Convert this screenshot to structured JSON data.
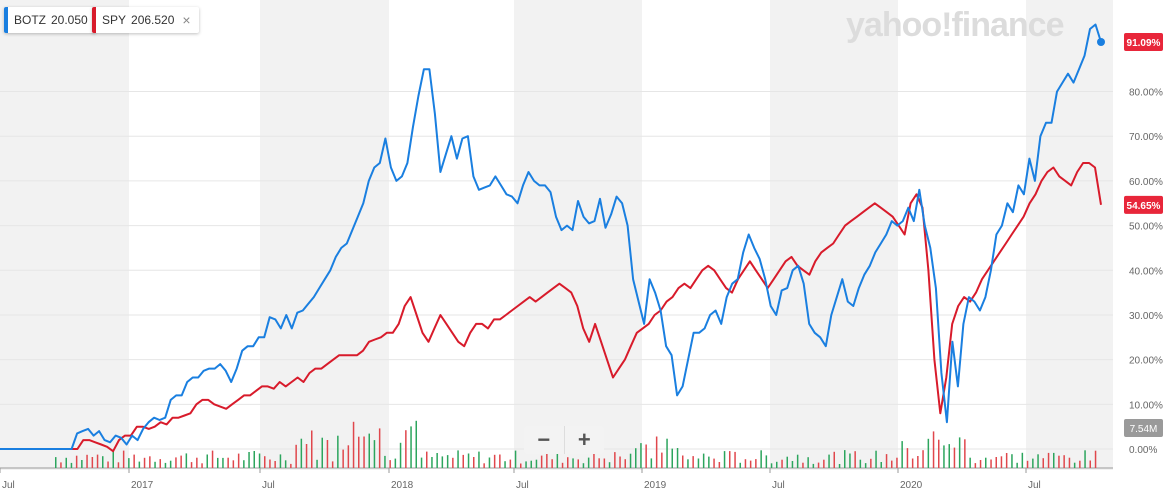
{
  "tags": [
    {
      "ticker": "BOTZ",
      "price": "20.050",
      "color": "#1a7fe0"
    },
    {
      "ticker": "SPY",
      "price": "206.520",
      "color": "#d81b2b",
      "close": "×"
    }
  ],
  "logo_text": "yahoo!finance",
  "zoom": {
    "minus": "−",
    "plus": "+"
  },
  "colors": {
    "botz": "#1a7fe0",
    "spy": "#d81b2b",
    "volume_up": "#2ca55d",
    "volume_down": "#e0474c",
    "band": "#f2f2f2"
  },
  "chart_data": {
    "type": "line",
    "x_ticks": [
      "Jul",
      "2017",
      "Jul",
      "2018",
      "Jul",
      "2019",
      "Jul",
      "2020",
      "Jul"
    ],
    "y_ticks": [
      "0.00%",
      "10.00%",
      "20.00%",
      "30.00%",
      "40.00%",
      "50.00%",
      "60.00%",
      "70.00%",
      "80.00%"
    ],
    "ylim": [
      -2,
      98
    ],
    "series": [
      {
        "name": "BOTZ",
        "last_label": "91.09%",
        "last_value": 91.09,
        "values": [
          0,
          0,
          0,
          0,
          0,
          0,
          0,
          0,
          0,
          0,
          0,
          0,
          0,
          0,
          3.5,
          4,
          4.5,
          3,
          4,
          2,
          1.5,
          3,
          2.5,
          1,
          3,
          2,
          4.5,
          6,
          7,
          6.5,
          7,
          11,
          12,
          12,
          15,
          16,
          16,
          17.5,
          18,
          18,
          19,
          17.5,
          15,
          18,
          22,
          23,
          23,
          25,
          25,
          29.5,
          29,
          27,
          30,
          27,
          30.5,
          31,
          32.5,
          34,
          36,
          38,
          40,
          43,
          45,
          46,
          49,
          52,
          55,
          60,
          63,
          64,
          69.5,
          63,
          60,
          61,
          64,
          72,
          79,
          85,
          85,
          75,
          62,
          66,
          70,
          65,
          69.5,
          70,
          61,
          58,
          58.5,
          59,
          61,
          59,
          57,
          56.5,
          55,
          59,
          62,
          60,
          59,
          59,
          57.5,
          52,
          49,
          50,
          49,
          55.5,
          52,
          50.5,
          51,
          56,
          49.5,
          52.5,
          56.5,
          55,
          50,
          38,
          33,
          28,
          38,
          35,
          31,
          23,
          21,
          12,
          14,
          20,
          26,
          26,
          27,
          30,
          31,
          28,
          34,
          37,
          38,
          44,
          48,
          45,
          42.5,
          38,
          32,
          30,
          35.5,
          36,
          40,
          41,
          37,
          28,
          26,
          25,
          23,
          30,
          34,
          38,
          33,
          32,
          36,
          39,
          41,
          44,
          46,
          48,
          51,
          50,
          51,
          54,
          51,
          58,
          50,
          45,
          36,
          17,
          6,
          24,
          14,
          28,
          34,
          33,
          31,
          34,
          40,
          48,
          50,
          55,
          53,
          59,
          57,
          65,
          60,
          70,
          73,
          73,
          80,
          82,
          84,
          82,
          85,
          88,
          94,
          95,
          91.09
        ]
      },
      {
        "name": "SPY",
        "last_label": "54.65%",
        "last_value": 54.65,
        "values": [
          0,
          0,
          0,
          0,
          0,
          0,
          0,
          0,
          0,
          0,
          0,
          0,
          0,
          0,
          2,
          2,
          1.5,
          1,
          0.5,
          -0.5,
          2,
          3,
          3,
          5,
          5,
          4.5,
          5,
          6,
          5.5,
          7,
          7,
          7.5,
          8,
          10,
          11,
          11,
          10,
          9.5,
          9,
          10,
          11,
          12,
          12,
          13,
          14,
          14,
          13.5,
          15,
          14,
          15,
          16,
          15,
          17,
          18,
          18,
          19,
          20,
          21,
          21,
          21,
          21,
          22,
          24,
          24.5,
          25,
          26,
          26,
          28,
          32,
          34,
          30,
          26,
          24,
          27,
          30,
          28,
          26,
          24,
          23,
          26,
          28,
          28,
          27,
          29,
          29,
          30,
          31,
          32,
          33,
          34,
          33,
          34,
          35,
          36,
          37,
          36,
          35,
          32,
          27,
          24,
          28,
          24,
          20,
          16,
          18,
          20,
          23,
          26,
          27,
          28,
          30,
          31,
          33,
          34,
          36,
          37,
          36,
          38,
          40,
          41,
          40,
          38,
          36,
          35,
          38,
          40,
          42,
          40,
          38,
          36,
          38,
          40,
          42,
          43,
          41,
          40,
          39,
          42,
          44,
          45,
          46,
          48,
          50,
          51,
          52,
          53,
          54,
          55,
          54,
          53,
          52,
          50,
          48,
          55,
          57,
          54,
          40,
          20,
          8,
          16,
          28,
          32,
          34,
          33,
          35,
          38,
          40,
          42,
          44,
          46,
          48,
          50,
          52,
          55,
          57,
          60,
          62,
          63,
          61,
          60,
          59,
          62,
          64,
          64,
          63,
          54.65
        ]
      },
      {
        "name": "Volume",
        "last_label": "7.54M",
        "last_value": 7.54
      }
    ]
  }
}
